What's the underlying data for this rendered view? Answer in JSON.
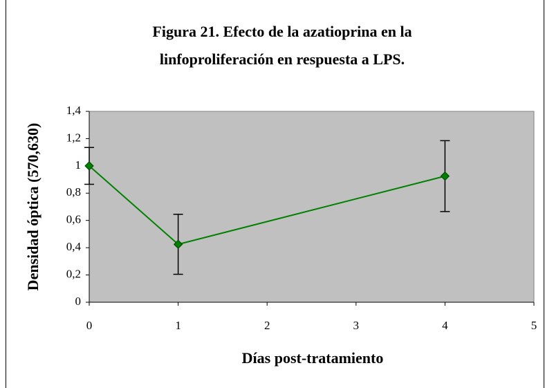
{
  "chart_data": {
    "type": "line",
    "title": [
      "Figura 21. Efecto de la azatioprina en la",
      "linfoproliferación en respuesta a LPS."
    ],
    "xlabel": "Días post-tratamiento",
    "ylabel": "Densidad óptica (570,630)",
    "x": [
      0,
      1,
      4
    ],
    "series": [
      {
        "color": "#008000",
        "values": [
          1.0,
          0.425,
          0.925
        ],
        "errors": [
          0.135,
          0.22,
          0.26
        ]
      }
    ],
    "xlim": [
      0,
      5
    ],
    "xticks": [
      0,
      1,
      2,
      3,
      4,
      5
    ],
    "ylim": [
      0,
      1.4
    ],
    "yticks": [
      0,
      {
        "value": 0.2,
        "label": "0,2"
      },
      {
        "value": 0.4,
        "label": "0,4"
      },
      {
        "value": 0.6,
        "label": "0,6"
      },
      {
        "value": 0.8,
        "label": "0,8"
      },
      1,
      {
        "value": 1.2,
        "label": "1,2"
      },
      {
        "value": 1.4,
        "label": "1,4"
      }
    ],
    "grid": false,
    "plot_background": "#c0c0c0"
  }
}
